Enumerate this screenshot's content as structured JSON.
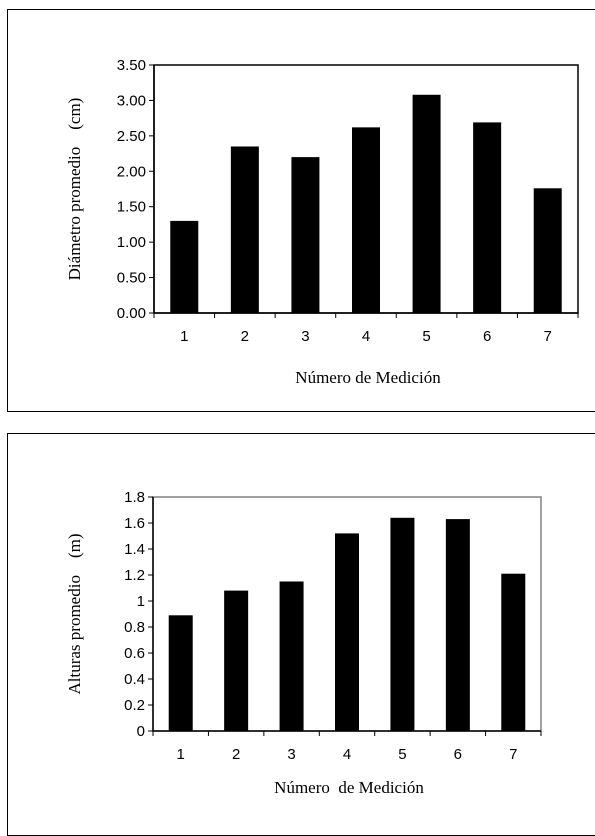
{
  "chart_data": [
    {
      "type": "bar",
      "categories": [
        "1",
        "2",
        "3",
        "4",
        "5",
        "6",
        "7"
      ],
      "values": [
        1.3,
        2.35,
        2.2,
        2.62,
        3.08,
        2.69,
        1.76
      ],
      "title": "",
      "xlabel": "Número de Medición",
      "ylabel": "Diámetro promedio    (cm)",
      "ylim": [
        0,
        3.5
      ],
      "yticks": [
        "0.00",
        "0.50",
        "1.00",
        "1.50",
        "2.00",
        "2.50",
        "3.00",
        "3.50"
      ],
      "bar_color": "#000000",
      "grid": false
    },
    {
      "type": "bar",
      "categories": [
        "1",
        "2",
        "3",
        "4",
        "5",
        "6",
        "7"
      ],
      "values": [
        0.89,
        1.08,
        1.15,
        1.52,
        1.64,
        1.63,
        1.21
      ],
      "title": "",
      "xlabel": "Número  de Medición",
      "ylabel": "Alturas promedio    (m)",
      "ylim": [
        0,
        1.8
      ],
      "yticks": [
        "0",
        "0.2",
        "0.4",
        "0.6",
        "0.8",
        "1",
        "1.2",
        "1.4",
        "1.6",
        "1.8"
      ],
      "bar_color": "#000000",
      "grid": false
    }
  ]
}
